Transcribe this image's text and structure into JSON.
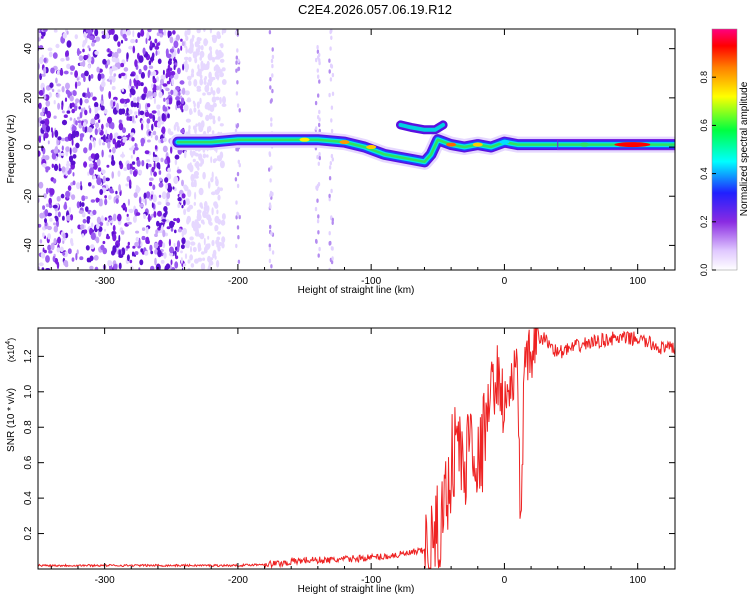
{
  "title": "C2E4.2026.057.06.19.R12",
  "chart_data": [
    {
      "type": "heatmap",
      "xlabel": "Height of straight line (km)",
      "ylabel": "Frequency (Hz)",
      "xlim": [
        -350,
        128
      ],
      "ylim": [
        -50,
        48
      ],
      "xticks": [
        -300,
        -200,
        -100,
        0,
        100
      ],
      "yticks": [
        -40,
        -20,
        0,
        20,
        40
      ],
      "colorbar": {
        "label": "Normalized spectral amplitude",
        "range": [
          0,
          1
        ],
        "ticks": [
          0.0,
          0.2,
          0.4,
          0.6,
          0.8
        ],
        "tick_labels": [
          "0.0",
          "0.2",
          "0.4",
          "0.6",
          "0.8"
        ],
        "colormap": [
          "#ffffff",
          "#e0c8ff",
          "#8a2be2",
          "#2020ff",
          "#00ffff",
          "#00ff40",
          "#ffff00",
          "#ff8000",
          "#ff0000",
          "#ff0080"
        ]
      },
      "ridge": {
        "x": [
          -245,
          -220,
          -200,
          -180,
          -160,
          -140,
          -120,
          -105,
          -90,
          -80,
          -70,
          -60,
          -55,
          -50,
          -40,
          -30,
          -20,
          -10,
          0,
          10,
          20,
          40,
          60,
          80,
          100,
          128
        ],
        "y": [
          2,
          2,
          3,
          3,
          3,
          3,
          2,
          0,
          -3,
          -4,
          -5,
          -6,
          -3,
          3,
          1,
          0,
          1,
          0,
          2,
          1,
          1,
          1,
          1,
          1,
          1,
          1
        ]
      },
      "side_branch": {
        "x": [
          -78,
          -70,
          -60,
          -52,
          -46
        ],
        "y": [
          9,
          8,
          7,
          7,
          9
        ]
      },
      "noise_region": {
        "x": [
          -350,
          -240
        ],
        "y": [
          -50,
          48
        ]
      }
    },
    {
      "type": "line",
      "xlabel": "Height of straight line (km)",
      "ylabel": "SNR (10 * v/v)",
      "ylabel_multiplier": "(x10",
      "ylabel_multiplier_exp": "4",
      "ylabel_multiplier_close": ")",
      "xlim": [
        -350,
        128
      ],
      "ylim": [
        0,
        1.36
      ],
      "xticks": [
        -300,
        -200,
        -100,
        0,
        100
      ],
      "yticks": [
        0.2,
        0.4,
        0.6,
        0.8,
        1.0,
        1.2
      ],
      "series": [
        {
          "color": "#ee2222",
          "x": [
            -350,
            -300,
            -250,
            -200,
            -170,
            -150,
            -130,
            -110,
            -90,
            -70,
            -55,
            -50,
            -45,
            -40,
            -35,
            -30,
            -25,
            -20,
            -15,
            -10,
            -5,
            0,
            5,
            10,
            12,
            15,
            20,
            25,
            30,
            40,
            60,
            80,
            100,
            120,
            128
          ],
          "y": [
            0.02,
            0.02,
            0.02,
            0.02,
            0.03,
            0.05,
            0.05,
            0.06,
            0.07,
            0.09,
            0.11,
            0.2,
            0.35,
            0.6,
            0.75,
            0.5,
            0.85,
            0.55,
            0.75,
            1.0,
            1.1,
            0.9,
            1.05,
            1.1,
            0.25,
            1.1,
            1.2,
            1.3,
            1.3,
            1.22,
            1.27,
            1.3,
            1.3,
            1.24,
            1.25
          ]
        }
      ]
    }
  ]
}
